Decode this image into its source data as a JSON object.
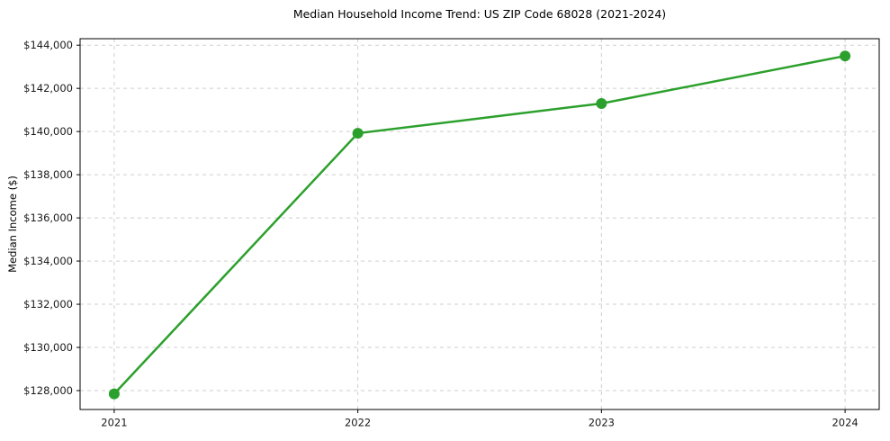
{
  "chart_data": {
    "type": "line",
    "title": "Median Household Income Trend: US ZIP Code 68028 (2021-2024)",
    "xlabel": "",
    "ylabel": "Median Income ($)",
    "categories": [
      2021,
      2022,
      2023,
      2024
    ],
    "series": [
      {
        "name": "Median Household Income",
        "values": [
          127850,
          139920,
          141300,
          143500
        ]
      }
    ],
    "xtick_labels": [
      "2021",
      "2022",
      "2023",
      "2024"
    ],
    "yticks": [
      128000,
      130000,
      132000,
      134000,
      136000,
      138000,
      140000,
      142000,
      144000
    ],
    "ytick_labels": [
      "$128,000",
      "$130,000",
      "$132,000",
      "$134,000",
      "$136,000",
      "$138,000",
      "$140,000",
      "$142,000",
      "$144,000"
    ],
    "xlim": [
      2020.86,
      2024.14
    ],
    "ylim": [
      127125,
      144300
    ],
    "grid": true,
    "grid_style": "dashed",
    "legend": "none",
    "line_color": "#2ca02c",
    "marker": "circle",
    "grid_color": "#cfcfcf",
    "spine_color": "#000000",
    "background_color": "#ffffff"
  }
}
